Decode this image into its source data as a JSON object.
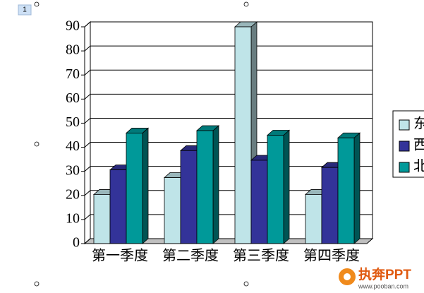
{
  "page_number": "1",
  "chart_data": {
    "type": "bar3d",
    "categories": [
      "第一季度",
      "第二季度",
      "第三季度",
      "第四季度"
    ],
    "series": [
      {
        "name": "东",
        "color": "#bfe4e8",
        "values": [
          20.4,
          27.4,
          90,
          20.4
        ]
      },
      {
        "name": "西",
        "color": "#333399",
        "values": [
          30.6,
          38.6,
          34.6,
          31.6
        ]
      },
      {
        "name": "北",
        "color": "#009999",
        "values": [
          45.9,
          46.9,
          45,
          43.9
        ]
      }
    ],
    "ylim": [
      0,
      90
    ],
    "yticks": [
      0,
      10,
      20,
      30,
      40,
      50,
      60,
      70,
      80,
      90
    ],
    "grid": true,
    "legend": "right"
  },
  "watermark": {
    "brand": "执奔PPT",
    "url": "www.pooban.com"
  }
}
